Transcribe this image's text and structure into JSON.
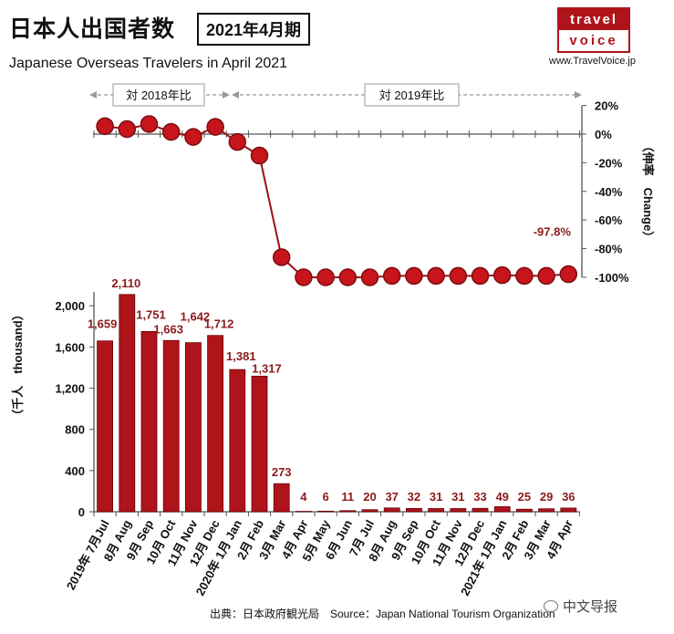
{
  "header": {
    "title_jp": "日本人出国者数",
    "period_badge": "2021年4月期",
    "title_en": "Japanese Overseas Travelers in April 2021",
    "logo_top": "travel",
    "logo_bottom": "voice",
    "site_url": "www.TravelVoice.jp"
  },
  "footer": {
    "source": "出典：日本政府観光局　Source：Japan  National Tourism  Organization",
    "watermark": "中文导报"
  },
  "colors": {
    "bar": "#b0141b",
    "marker": "#c8141b",
    "label": "#8b1a1a"
  },
  "chart_data": [
    {
      "type": "line",
      "comparison_labels": [
        "対 2018年比",
        "対 2019年比"
      ],
      "ylabel": "（伸率　Change）",
      "yticks": [
        "20%",
        "0%",
        "-20%",
        "-40%",
        "-60%",
        "-80%",
        "-100%"
      ],
      "ylim": [
        -100,
        20
      ],
      "values": [
        5.5,
        3.5,
        7,
        1.5,
        -2,
        5,
        -5.5,
        -15,
        -86,
        -100,
        -100,
        -100,
        -100,
        -99,
        -99,
        -99,
        -99,
        -99,
        -98.5,
        -99,
        -99,
        -97.8
      ],
      "annotation": "-97.8%"
    },
    {
      "type": "bar",
      "ylabel": "（千人　thousand）",
      "yticks": [
        "0",
        "400",
        "800",
        "1,200",
        "1,600",
        "2,000"
      ],
      "ylim": [
        0,
        2250
      ],
      "categories": [
        "2019年 7月Jul",
        "8月 Aug",
        "9月 Sep",
        "10月 Oct",
        "11月 Nov",
        "12月 Dec",
        "2020年 1月 Jan",
        "2月 Feb",
        "3月 Mar",
        "4月 Apr",
        "5月 May",
        "6月 Jun",
        "7月 Jul",
        "8月 Aug",
        "9月 Sep",
        "10月 Oct",
        "11月 Nov",
        "12月 Dec",
        "2021年 1月 Jan",
        "2月 Feb",
        "3月 Mar",
        "4月 Apr"
      ],
      "values": [
        1659,
        2110,
        1751,
        1663,
        1642,
        1712,
        1381,
        1317,
        273,
        4,
        6,
        11,
        20,
        37,
        32,
        31,
        31,
        33,
        49,
        25,
        29,
        36
      ],
      "data_labels": [
        "1,659",
        "2,110",
        "1,751",
        "1,663",
        "1,642",
        "1,712",
        "1,381",
        "1,317",
        "273",
        "4",
        "6",
        "11",
        "20",
        "37",
        "32",
        "31",
        "31",
        "33",
        "49",
        "25",
        "29",
        "36"
      ]
    }
  ]
}
